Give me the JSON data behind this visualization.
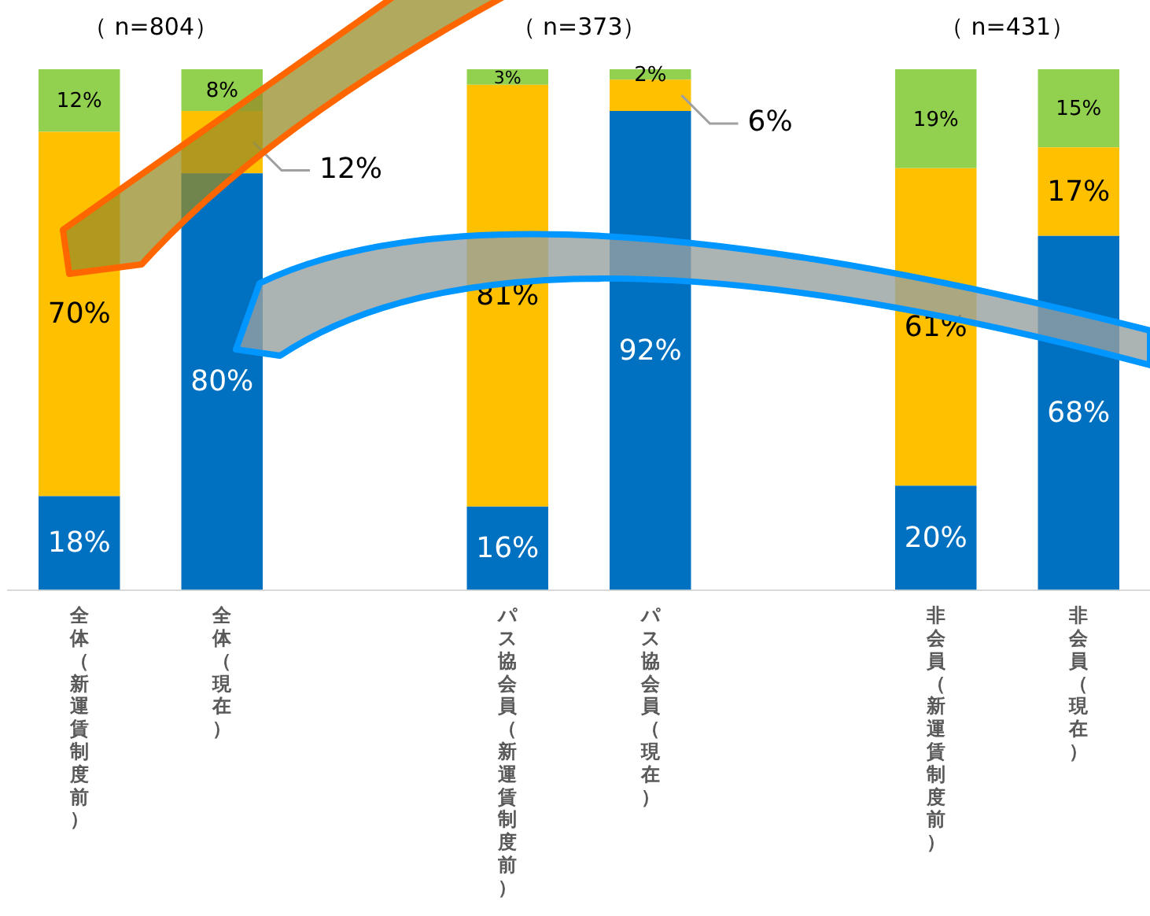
{
  "chart_data": {
    "type": "bar",
    "stacked": true,
    "legend": false,
    "grid": false,
    "tick_labels": "x",
    "categories": [
      "全体（新運賃制度前）",
      "全体（現在）",
      null,
      "パス協会員（新運賃制度前）",
      "パス協会員（現在）",
      null,
      "非会員（新運賃制度前）",
      "非会員（現在）"
    ],
    "series": [
      {
        "color": "#0070c0",
        "values": [
          18,
          80,
          null,
          16,
          92,
          null,
          20,
          68
        ],
        "value_labels": [
          "18%",
          "80%",
          null,
          "16%",
          "92%",
          null,
          "20%",
          "68%"
        ]
      },
      {
        "color": "#ffc000",
        "values": [
          70,
          12,
          null,
          81,
          6,
          null,
          61,
          17
        ],
        "value_labels": [
          "70%",
          "12%",
          null,
          "81%",
          "6%",
          null,
          "61%",
          "17%"
        ]
      },
      {
        "color": "#92d050",
        "values": [
          12,
          8,
          null,
          3,
          2,
          null,
          19,
          15
        ],
        "value_labels": [
          "12%",
          "8%",
          null,
          "3%",
          "2%",
          null,
          "19%",
          "15%"
        ]
      }
    ],
    "annotations": [
      "（ n=804）",
      "（ n=373）",
      "（ n=431）"
    ]
  }
}
